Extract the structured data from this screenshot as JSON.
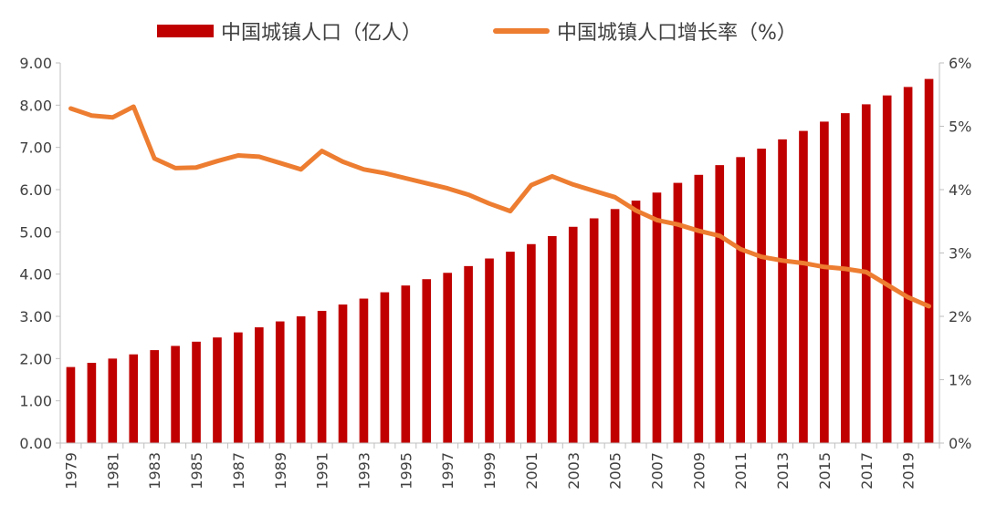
{
  "chart_data": {
    "type": "bar+line",
    "title": "",
    "legend": {
      "placement": "top",
      "bar_label": "中国城镇人口（亿人）",
      "line_label": "中国城镇人口增长率（%）"
    },
    "colors": {
      "bar": "#c00000",
      "line": "#ed7d31",
      "axis": "#bfbfbf",
      "text": "#404040"
    },
    "categories": [
      "1979",
      "1980",
      "1981",
      "1982",
      "1983",
      "1984",
      "1985",
      "1986",
      "1987",
      "1988",
      "1989",
      "1990",
      "1991",
      "1992",
      "1993",
      "1994",
      "1995",
      "1996",
      "1997",
      "1998",
      "1999",
      "2000",
      "2001",
      "2002",
      "2003",
      "2004",
      "2005",
      "2006",
      "2007",
      "2008",
      "2009",
      "2010",
      "2011",
      "2012",
      "2013",
      "2014",
      "2015",
      "2016",
      "2017",
      "2018",
      "2019",
      "2020"
    ],
    "x_tick_labels": [
      "1979",
      "1981",
      "1983",
      "1985",
      "1987",
      "1989",
      "1991",
      "1993",
      "1995",
      "1997",
      "1999",
      "2001",
      "2003",
      "2005",
      "2007",
      "2009",
      "2011",
      "2013",
      "2015",
      "2017",
      "2019"
    ],
    "series": [
      {
        "name": "中国城镇人口（亿人）",
        "type": "bar",
        "axis": "left",
        "values": [
          1.8,
          1.9,
          2.0,
          2.1,
          2.2,
          2.3,
          2.4,
          2.5,
          2.62,
          2.74,
          2.88,
          3.0,
          3.13,
          3.28,
          3.42,
          3.57,
          3.73,
          3.88,
          4.03,
          4.19,
          4.37,
          4.53,
          4.71,
          4.9,
          5.12,
          5.32,
          5.54,
          5.74,
          5.93,
          6.16,
          6.35,
          6.58,
          6.77,
          6.97,
          7.19,
          7.39,
          7.61,
          7.81,
          8.02,
          8.23,
          8.43,
          8.62
        ]
      },
      {
        "name": "中国城镇人口增长率（%）",
        "type": "line",
        "axis": "right",
        "values": [
          5.28,
          5.17,
          5.14,
          5.31,
          4.49,
          4.34,
          4.35,
          4.45,
          4.54,
          4.52,
          4.42,
          4.32,
          4.61,
          4.44,
          4.32,
          4.26,
          4.18,
          4.1,
          4.02,
          3.92,
          3.78,
          3.66,
          4.07,
          4.21,
          4.08,
          3.98,
          3.88,
          3.67,
          3.52,
          3.45,
          3.35,
          3.27,
          3.06,
          2.94,
          2.88,
          2.84,
          2.78,
          2.75,
          2.7,
          2.5,
          2.3,
          2.16
        ]
      }
    ],
    "y_left": {
      "min": 0,
      "max": 9,
      "ticks": [
        "0.00",
        "1.00",
        "2.00",
        "3.00",
        "4.00",
        "5.00",
        "6.00",
        "7.00",
        "8.00",
        "9.00"
      ]
    },
    "y_right": {
      "min": 0,
      "max": 6,
      "ticks": [
        "0%",
        "1%",
        "2%",
        "3%",
        "4%",
        "5%",
        "6%"
      ]
    },
    "grid": false
  }
}
